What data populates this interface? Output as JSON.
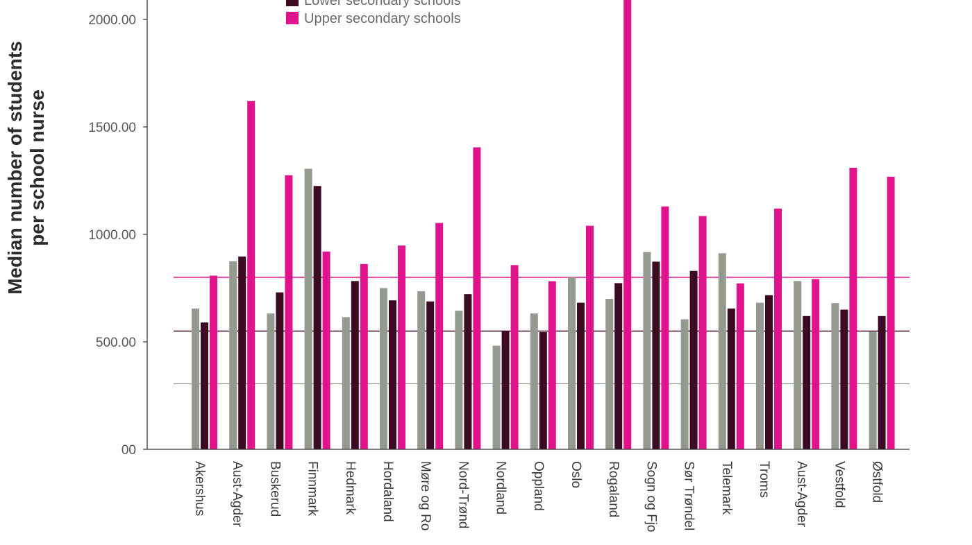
{
  "chart_data": {
    "type": "bar",
    "ylabel": [
      "Median number of students",
      "per school nurse"
    ],
    "ylim": [
      0,
      2100
    ],
    "yticks": [
      {
        "value": 0,
        "label": "00"
      },
      {
        "value": 500,
        "label": "500.00"
      },
      {
        "value": 1000,
        "label": "1000.00"
      },
      {
        "value": 1500,
        "label": "1500.00"
      },
      {
        "value": 2000,
        "label": "2000.00"
      }
    ],
    "categories": [
      "Akershus",
      "Aust-Agder",
      "Buskerud",
      "Finnmark",
      "Hedmark",
      "Hordaland",
      "Møre og Ro",
      "Nord-Trønd",
      "Nordland",
      "Oppland",
      "Oslo",
      "Rogaland",
      "Sogn og Fjo",
      "Sør Trøndel",
      "Telemark",
      "Troms",
      "Aust-Agder",
      "Vestfold",
      "Østfold"
    ],
    "series": [
      {
        "name": "",
        "color": "#959a91",
        "values": [
          655,
          875,
          632,
          1305,
          615,
          750,
          735,
          645,
          482,
          632,
          800,
          700,
          918,
          605,
          912,
          682,
          783,
          680,
          548
        ]
      },
      {
        "name": "Lower secondary schools",
        "color": "#3d0a24",
        "values": [
          590,
          897,
          730,
          1225,
          783,
          693,
          688,
          722,
          552,
          545,
          682,
          773,
          873,
          830,
          655,
          717,
          620,
          650,
          620
        ]
      },
      {
        "name": "Upper secondary schools",
        "color": "#e0138c",
        "values": [
          808,
          1620,
          1275,
          920,
          862,
          948,
          1053,
          1405,
          857,
          782,
          1040,
          2100,
          1130,
          1085,
          772,
          1120,
          792,
          1310,
          1268
        ]
      }
    ],
    "reference_lines": [
      {
        "value": 800,
        "color": "#e0138c"
      },
      {
        "value": 550,
        "color": "#3d0a24"
      },
      {
        "value": 305,
        "color": "#959a91"
      }
    ],
    "legend": {
      "placement": "top",
      "entries": [
        "Lower secondary schools",
        "Upper secondary schools"
      ]
    },
    "grid": false
  }
}
